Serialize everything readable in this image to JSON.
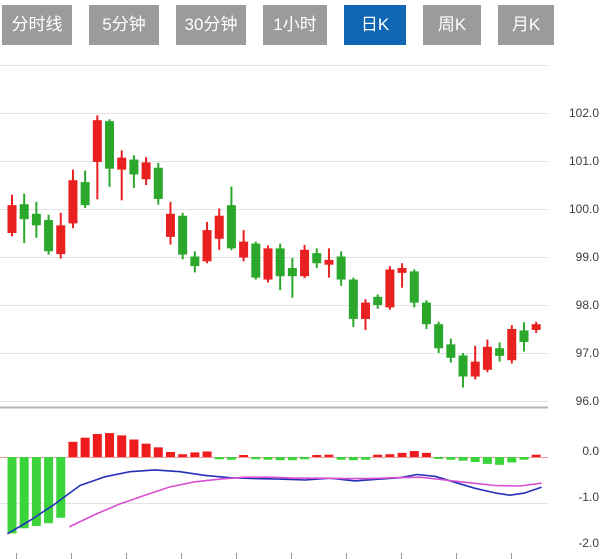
{
  "tabs": {
    "items": [
      {
        "id": "tab-minute-line",
        "label": "分时线",
        "active": false,
        "width": 70
      },
      {
        "id": "tab-5min",
        "label": "5分钟",
        "active": false,
        "width": 70
      },
      {
        "id": "tab-30min",
        "label": "30分钟",
        "active": false,
        "width": 70
      },
      {
        "id": "tab-1hour",
        "label": "1小时",
        "active": false,
        "width": 64
      },
      {
        "id": "tab-daily-k",
        "label": "日K",
        "active": true,
        "width": 62
      },
      {
        "id": "tab-weekly-k",
        "label": "周K",
        "active": false,
        "width": 58
      },
      {
        "id": "tab-monthly-k",
        "label": "月K",
        "active": false,
        "width": 56
      }
    ],
    "active_bg": "#0f66b2",
    "inactive_bg": "#9b9b9b",
    "text_color": "#ffffff"
  },
  "chart_data": {
    "type": "candlestick",
    "title": "",
    "convention": "chinese (red = up, green = down)",
    "price_axis": {
      "grid_values": [
        103,
        102,
        101,
        100,
        99,
        98,
        97,
        96
      ],
      "tick_labels": [
        "",
        "102.0",
        "101.0",
        "100.0",
        "99.0",
        "98.0",
        "97.0",
        "96.0"
      ]
    },
    "macd_axis": {
      "grid_values": [
        0,
        -1,
        -2
      ],
      "tick_labels": [
        "0.0",
        "-1.0",
        "-2.0"
      ]
    },
    "candles_ohlc": [
      [
        99.5,
        100.3,
        99.43,
        100.08
      ],
      [
        100.1,
        100.32,
        99.29,
        99.79
      ],
      [
        99.9,
        100.15,
        99.4,
        99.66
      ],
      [
        99.77,
        99.88,
        99.05,
        99.12
      ],
      [
        99.06,
        99.92,
        98.97,
        99.66
      ],
      [
        99.7,
        100.82,
        99.6,
        100.6
      ],
      [
        100.56,
        100.8,
        100.02,
        100.08
      ],
      [
        100.98,
        101.95,
        100.2,
        101.85
      ],
      [
        101.83,
        101.87,
        100.46,
        100.84
      ],
      [
        100.82,
        101.22,
        100.18,
        101.07
      ],
      [
        101.03,
        101.12,
        100.44,
        100.72
      ],
      [
        100.62,
        101.08,
        100.5,
        100.97
      ],
      [
        100.86,
        100.96,
        100.09,
        100.21
      ],
      [
        99.42,
        100.15,
        99.26,
        99.9
      ],
      [
        99.86,
        99.92,
        98.95,
        99.05
      ],
      [
        99.01,
        99.12,
        98.68,
        98.81
      ],
      [
        98.91,
        99.73,
        98.87,
        99.56
      ],
      [
        99.38,
        100.01,
        99.15,
        99.86
      ],
      [
        100.08,
        100.47,
        99.14,
        99.18
      ],
      [
        98.99,
        99.56,
        98.91,
        99.32
      ],
      [
        99.28,
        99.32,
        98.53,
        98.57
      ],
      [
        98.53,
        99.24,
        98.47,
        99.18
      ],
      [
        99.18,
        99.28,
        98.31,
        98.6
      ],
      [
        98.77,
        98.98,
        98.15,
        98.6
      ],
      [
        98.6,
        99.25,
        98.56,
        99.15
      ],
      [
        99.08,
        99.18,
        98.77,
        98.87
      ],
      [
        98.84,
        99.18,
        98.57,
        98.94
      ],
      [
        99.01,
        99.12,
        98.4,
        98.53
      ],
      [
        98.53,
        98.57,
        97.54,
        97.71
      ],
      [
        97.71,
        98.12,
        97.48,
        98.05
      ],
      [
        98.17,
        98.22,
        97.92,
        98.0
      ],
      [
        97.95,
        98.81,
        97.9,
        98.74
      ],
      [
        98.67,
        98.87,
        98.36,
        98.77
      ],
      [
        98.7,
        98.74,
        97.95,
        98.05
      ],
      [
        98.05,
        98.1,
        97.5,
        97.6
      ],
      [
        97.6,
        97.65,
        97.0,
        97.1
      ],
      [
        97.18,
        97.3,
        96.8,
        96.9
      ],
      [
        96.95,
        97.0,
        96.28,
        96.51
      ],
      [
        96.51,
        97.15,
        96.45,
        96.82
      ],
      [
        96.65,
        97.28,
        96.6,
        97.13
      ],
      [
        97.1,
        97.22,
        96.82,
        96.94
      ],
      [
        96.85,
        97.58,
        96.78,
        97.5
      ],
      [
        97.47,
        97.64,
        97.03,
        97.23
      ],
      [
        97.48,
        97.65,
        97.42,
        97.6
      ]
    ],
    "macd": {
      "histogram": [
        -1.66,
        -1.55,
        -1.5,
        -1.44,
        -1.32,
        0.33,
        0.42,
        0.5,
        0.52,
        0.47,
        0.38,
        0.29,
        0.21,
        0.11,
        0.06,
        0.1,
        0.12,
        -0.05,
        -0.06,
        0.04,
        -0.05,
        -0.06,
        -0.07,
        -0.07,
        -0.05,
        0.02,
        0.05,
        -0.06,
        -0.07,
        -0.06,
        0.05,
        0.06,
        0.09,
        0.13,
        0.09,
        -0.03,
        -0.06,
        -0.08,
        -0.11,
        -0.15,
        -0.17,
        -0.12,
        -0.06,
        0.05
      ],
      "dif_line": [
        [
          8,
          -1.66
        ],
        [
          30,
          -1.38
        ],
        [
          55,
          -1.02
        ],
        [
          80,
          -0.62
        ],
        [
          105,
          -0.43
        ],
        [
          130,
          -0.32
        ],
        [
          155,
          -0.28
        ],
        [
          180,
          -0.32
        ],
        [
          205,
          -0.4
        ],
        [
          230,
          -0.45
        ],
        [
          255,
          -0.47
        ],
        [
          280,
          -0.48
        ],
        [
          305,
          -0.5
        ],
        [
          330,
          -0.46
        ],
        [
          355,
          -0.52
        ],
        [
          380,
          -0.48
        ],
        [
          400,
          -0.45
        ],
        [
          417,
          -0.38
        ],
        [
          435,
          -0.42
        ],
        [
          455,
          -0.55
        ],
        [
          475,
          -0.68
        ],
        [
          495,
          -0.78
        ],
        [
          510,
          -0.83
        ],
        [
          525,
          -0.78
        ],
        [
          541,
          -0.66
        ]
      ],
      "dea_line": [
        [
          70,
          -1.51
        ],
        [
          95,
          -1.25
        ],
        [
          120,
          -1.02
        ],
        [
          145,
          -0.83
        ],
        [
          170,
          -0.65
        ],
        [
          195,
          -0.54
        ],
        [
          220,
          -0.48
        ],
        [
          245,
          -0.44
        ],
        [
          270,
          -0.44
        ],
        [
          295,
          -0.46
        ],
        [
          320,
          -0.46
        ],
        [
          345,
          -0.47
        ],
        [
          370,
          -0.47
        ],
        [
          395,
          -0.45
        ],
        [
          420,
          -0.44
        ],
        [
          445,
          -0.5
        ],
        [
          470,
          -0.56
        ],
        [
          495,
          -0.62
        ],
        [
          520,
          -0.63
        ],
        [
          541,
          -0.57
        ]
      ]
    },
    "colors": {
      "up_red": "#e82020",
      "down_green": "#2ba82b",
      "macd_green": "#3bd43b",
      "macd_red": "#ee1c1c",
      "dif_blue": "#2331b8",
      "dea_magenta": "#d94fd2",
      "zero_line": "#f09a9a",
      "grid": "#e3e3e3",
      "axis_line": "#b5b5b5",
      "label_text": "#3d3d3d",
      "x_tick": "#999999"
    },
    "layout_hints": {
      "grid": "horizontal only",
      "price_labels_position": "right",
      "macd_labels_position": "right"
    }
  }
}
